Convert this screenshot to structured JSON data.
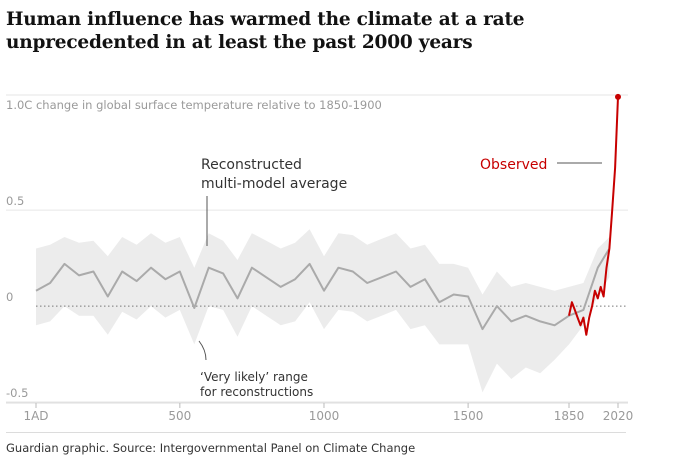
{
  "title": "Human influence has warmed the climate at a rate unprecedented in at least the past 2000 years",
  "source": "Guardian graphic. Source: Intergovernmental Panel on Climate Change",
  "colors": {
    "observed": "#c70000",
    "reconstruction": "#aaaaaa",
    "range": "#ececec",
    "grid": "#e6e6e6"
  },
  "chart_data": {
    "type": "line",
    "ylabel": "1.0C change in global surface temperature relative to 1850-1900",
    "ylim": [
      -0.5,
      1.1
    ],
    "xlim": [
      1,
      2020
    ],
    "y_ticks": [
      {
        "value": 0.5,
        "label": "0.5"
      },
      {
        "value": 0,
        "label": "0"
      },
      {
        "value": -0.5,
        "label": "-0.5"
      }
    ],
    "x_ticks": [
      {
        "value": 1,
        "label": "1AD"
      },
      {
        "value": 500,
        "label": "500"
      },
      {
        "value": 1000,
        "label": "1000"
      },
      {
        "value": 1500,
        "label": "1500"
      },
      {
        "value": 1850,
        "label": "1850"
      },
      {
        "value": 2020,
        "label": "2020"
      }
    ],
    "annotations": {
      "reconstructed": [
        "Reconstructed",
        "multi-model average"
      ],
      "observed": "Observed",
      "range": [
        "‘Very likely’ range",
        "for reconstructions"
      ]
    },
    "series": [
      {
        "name": "Reconstructed multi-model average",
        "x": [
          1,
          50,
          100,
          150,
          200,
          250,
          300,
          350,
          400,
          450,
          500,
          550,
          600,
          650,
          700,
          750,
          800,
          850,
          900,
          950,
          1000,
          1050,
          1100,
          1150,
          1200,
          1250,
          1300,
          1350,
          1400,
          1450,
          1500,
          1550,
          1600,
          1650,
          1700,
          1750,
          1800,
          1850,
          1900,
          1950,
          1990
        ],
        "y": [
          0.08,
          0.12,
          0.22,
          0.16,
          0.18,
          0.05,
          0.18,
          0.13,
          0.2,
          0.14,
          0.18,
          -0.01,
          0.2,
          0.17,
          0.04,
          0.2,
          0.15,
          0.1,
          0.14,
          0.22,
          0.08,
          0.2,
          0.18,
          0.12,
          0.15,
          0.18,
          0.1,
          0.14,
          0.02,
          0.06,
          0.05,
          -0.12,
          0.0,
          -0.08,
          -0.05,
          -0.08,
          -0.1,
          -0.05,
          -0.02,
          0.2,
          0.3
        ],
        "range_upper": [
          0.3,
          0.32,
          0.36,
          0.33,
          0.34,
          0.26,
          0.36,
          0.32,
          0.38,
          0.33,
          0.36,
          0.2,
          0.38,
          0.34,
          0.24,
          0.38,
          0.34,
          0.3,
          0.33,
          0.4,
          0.26,
          0.38,
          0.37,
          0.32,
          0.35,
          0.38,
          0.3,
          0.32,
          0.22,
          0.22,
          0.2,
          0.06,
          0.18,
          0.1,
          0.12,
          0.1,
          0.08,
          0.1,
          0.12,
          0.3,
          0.36
        ],
        "range_lower": [
          -0.1,
          -0.08,
          0.0,
          -0.05,
          -0.05,
          -0.15,
          -0.03,
          -0.07,
          0.0,
          -0.06,
          -0.02,
          -0.2,
          0.0,
          -0.02,
          -0.16,
          0.0,
          -0.05,
          -0.1,
          -0.08,
          0.02,
          -0.12,
          -0.02,
          -0.03,
          -0.08,
          -0.05,
          -0.02,
          -0.12,
          -0.1,
          -0.2,
          -0.2,
          -0.2,
          -0.45,
          -0.3,
          -0.38,
          -0.32,
          -0.35,
          -0.28,
          -0.2,
          -0.1,
          0.05,
          0.15
        ]
      },
      {
        "name": "Observed",
        "x": [
          1850,
          1860,
          1870,
          1880,
          1890,
          1900,
          1910,
          1920,
          1930,
          1940,
          1950,
          1960,
          1970,
          1980,
          1990,
          2000,
          2010,
          2020
        ],
        "y": [
          -0.05,
          0.02,
          -0.02,
          -0.06,
          -0.1,
          -0.06,
          -0.15,
          -0.06,
          0.0,
          0.08,
          0.04,
          0.1,
          0.05,
          0.2,
          0.3,
          0.5,
          0.72,
          1.09
        ]
      }
    ]
  }
}
